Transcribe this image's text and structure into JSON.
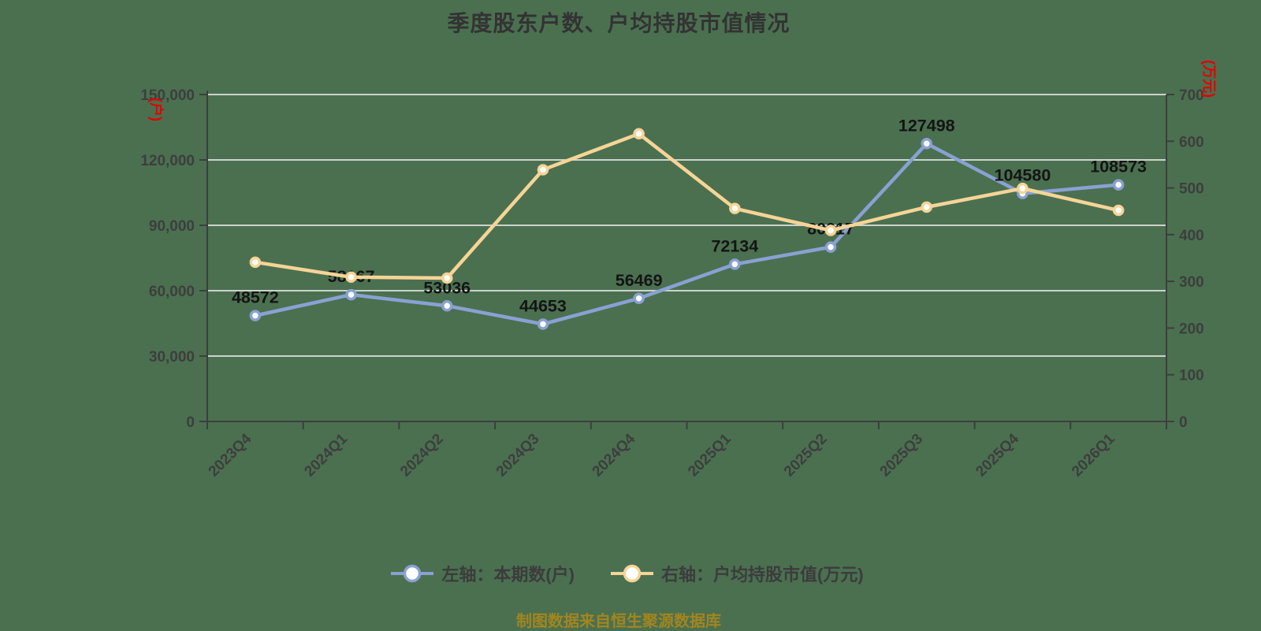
{
  "title": "季度股东户数、户均持股市值情况",
  "caption": "制图数据来自恒生聚源数据库",
  "colors": {
    "background": "#4a7050",
    "blue_series": "#89a1d2",
    "yellow_series": "#f6d496",
    "marker_fill": "#ffffff",
    "grid": "#cdd2cd",
    "axis": "#3e3e3e",
    "tick_text": "#3e3e3e",
    "data_label": "#141414",
    "unit_red": "#e60000",
    "caption_gold": "#a3851f"
  },
  "left_axis": {
    "unit": "(户)",
    "min": 0,
    "max": 150000,
    "step": 30000,
    "tick_labels": [
      "0",
      "30,000",
      "60,000",
      "90,000",
      "120,000",
      "150,000"
    ]
  },
  "right_axis": {
    "unit": "(万元)",
    "min": 0,
    "max": 700,
    "step": 100,
    "tick_labels": [
      "0",
      "100",
      "200",
      "300",
      "400",
      "500",
      "600",
      "700"
    ]
  },
  "legend": [
    {
      "label": "左轴：本期数(户)",
      "color_key": "blue_series"
    },
    {
      "label": "右轴：户均持股市值(万元)",
      "color_key": "yellow_series"
    }
  ],
  "chart_data": {
    "type": "line",
    "categories": [
      "2023Q4",
      "2024Q1",
      "2024Q2",
      "2024Q3",
      "2024Q4",
      "2025Q1",
      "2025Q2",
      "2025Q3",
      "2025Q4",
      "2026Q1"
    ],
    "series": [
      {
        "name": "左轴：本期数(户)",
        "axis": "left",
        "color_key": "blue_series",
        "values": [
          48572,
          58167,
          53036,
          44653,
          56469,
          72134,
          80017,
          127498,
          104580,
          108573
        ],
        "point_labels": [
          "48572",
          "58167",
          "53036",
          "44653",
          "56469",
          "72134",
          "80017",
          "127498",
          "104580",
          "108573"
        ]
      },
      {
        "name": "右轴：户均持股市值(万元)",
        "axis": "right",
        "color_key": "yellow_series",
        "values": [
          341,
          309,
          307,
          539,
          616,
          456,
          409,
          459,
          499,
          452
        ],
        "point_labels": []
      }
    ],
    "left_ylim": [
      0,
      150000
    ],
    "right_ylim": [
      0,
      700
    ],
    "grid": true,
    "legend_position": "bottom",
    "x_label_rotation": -45
  }
}
